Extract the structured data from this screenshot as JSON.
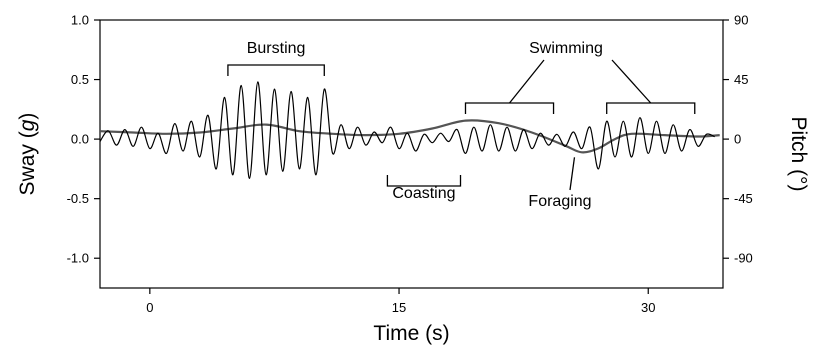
{
  "chart_data": {
    "type": "line",
    "xlabel": "Time (s)",
    "ylabel_left_prefix": "Sway (",
    "ylabel_left_italic": "g",
    "ylabel_left_suffix": ")",
    "ylabel_right": "Pitch (°)",
    "xlim": [
      -3,
      34.5
    ],
    "ylim_left": [
      -1.25,
      1.0
    ],
    "ylim_right": [
      -112.5,
      90
    ],
    "x_ticks": [
      {
        "v": 0,
        "label": "0"
      },
      {
        "v": 15,
        "label": "15"
      },
      {
        "v": 30,
        "label": "30"
      }
    ],
    "y_ticks_left": [
      {
        "v": 1.0,
        "label": "1.0"
      },
      {
        "v": 0.5,
        "label": "0.5"
      },
      {
        "v": 0.0,
        "label": "0.0"
      },
      {
        "v": -0.5,
        "label": "-0.5"
      },
      {
        "v": -1.0,
        "label": "-1.0"
      }
    ],
    "y_ticks_right": [
      {
        "v": 90,
        "label": "90"
      },
      {
        "v": 45,
        "label": "45"
      },
      {
        "v": 0,
        "label": "0"
      },
      {
        "v": -45,
        "label": "-45"
      },
      {
        "v": -90,
        "label": "-90"
      }
    ],
    "grid": false,
    "series": [
      {
        "key": "sway",
        "axis": "left",
        "x": [
          -3.0,
          -2.5,
          -2.0,
          -1.5,
          -1.0,
          -0.5,
          0.0,
          0.5,
          1.0,
          1.5,
          2.0,
          2.5,
          3.0,
          3.5,
          4.0,
          4.5,
          5.0,
          5.5,
          6.0,
          6.5,
          7.0,
          7.5,
          8.0,
          8.5,
          9.0,
          9.5,
          10.0,
          10.5,
          11.0,
          11.5,
          12.0,
          12.5,
          13.0,
          13.5,
          14.0,
          14.5,
          15.0,
          15.5,
          16.0,
          16.5,
          17.0,
          17.5,
          18.0,
          18.5,
          19.0,
          19.5,
          20.0,
          20.5,
          21.0,
          21.5,
          22.0,
          22.5,
          23.0,
          23.5,
          24.0,
          24.5,
          25.0,
          25.5,
          26.0,
          26.5,
          27.0,
          27.5,
          28.0,
          28.5,
          29.0,
          29.5,
          30.0,
          30.5,
          31.0,
          31.5,
          32.0,
          32.5,
          33.0,
          33.5,
          34.0
        ],
        "y": [
          -0.02,
          0.07,
          -0.05,
          0.08,
          -0.06,
          0.1,
          -0.08,
          0.05,
          -0.12,
          0.13,
          -0.1,
          0.15,
          -0.15,
          0.2,
          -0.25,
          0.35,
          -0.3,
          0.45,
          -0.33,
          0.48,
          -0.3,
          0.42,
          -0.27,
          0.4,
          -0.25,
          0.35,
          -0.3,
          0.42,
          -0.12,
          0.12,
          -0.08,
          0.1,
          -0.05,
          0.06,
          -0.03,
          0.1,
          -0.08,
          0.05,
          -0.1,
          0.04,
          -0.03,
          0.05,
          -0.02,
          0.08,
          -0.12,
          0.1,
          -0.1,
          0.12,
          -0.1,
          0.1,
          -0.1,
          0.08,
          -0.08,
          0.05,
          -0.05,
          0.04,
          -0.06,
          0.06,
          -0.08,
          0.1,
          -0.25,
          0.15,
          -0.15,
          0.15,
          -0.15,
          0.18,
          -0.12,
          0.15,
          -0.12,
          0.12,
          -0.1,
          0.08,
          -0.06,
          0.04,
          0.02
        ]
      },
      {
        "key": "pitch",
        "axis": "right",
        "x": [
          -3,
          -1,
          1,
          3,
          5,
          7,
          9,
          11,
          13,
          15,
          17,
          19,
          21,
          23,
          25,
          26,
          27,
          28,
          29,
          31,
          33,
          34.3
        ],
        "y": [
          6,
          5,
          4,
          5,
          8,
          11,
          6,
          4,
          3,
          4,
          8,
          14,
          12,
          5,
          -5,
          -10,
          -7,
          0,
          4,
          3,
          2,
          3
        ]
      }
    ],
    "annotations": [
      {
        "text": "Bursting",
        "bracket_x": [
          4.7,
          10.5
        ],
        "direction": "down"
      },
      {
        "text": "Coasting",
        "bracket_x": [
          14.3,
          18.7
        ],
        "direction": "up"
      },
      {
        "text": "Swimming",
        "bracket_x": [
          19.0,
          24.3
        ],
        "direction": "down"
      },
      {
        "text": "Swimming",
        "bracket_x": [
          27.5,
          32.8
        ],
        "direction": "down"
      },
      {
        "text": "Foraging",
        "arrow_to": [
          25.8,
          -10
        ]
      }
    ]
  }
}
